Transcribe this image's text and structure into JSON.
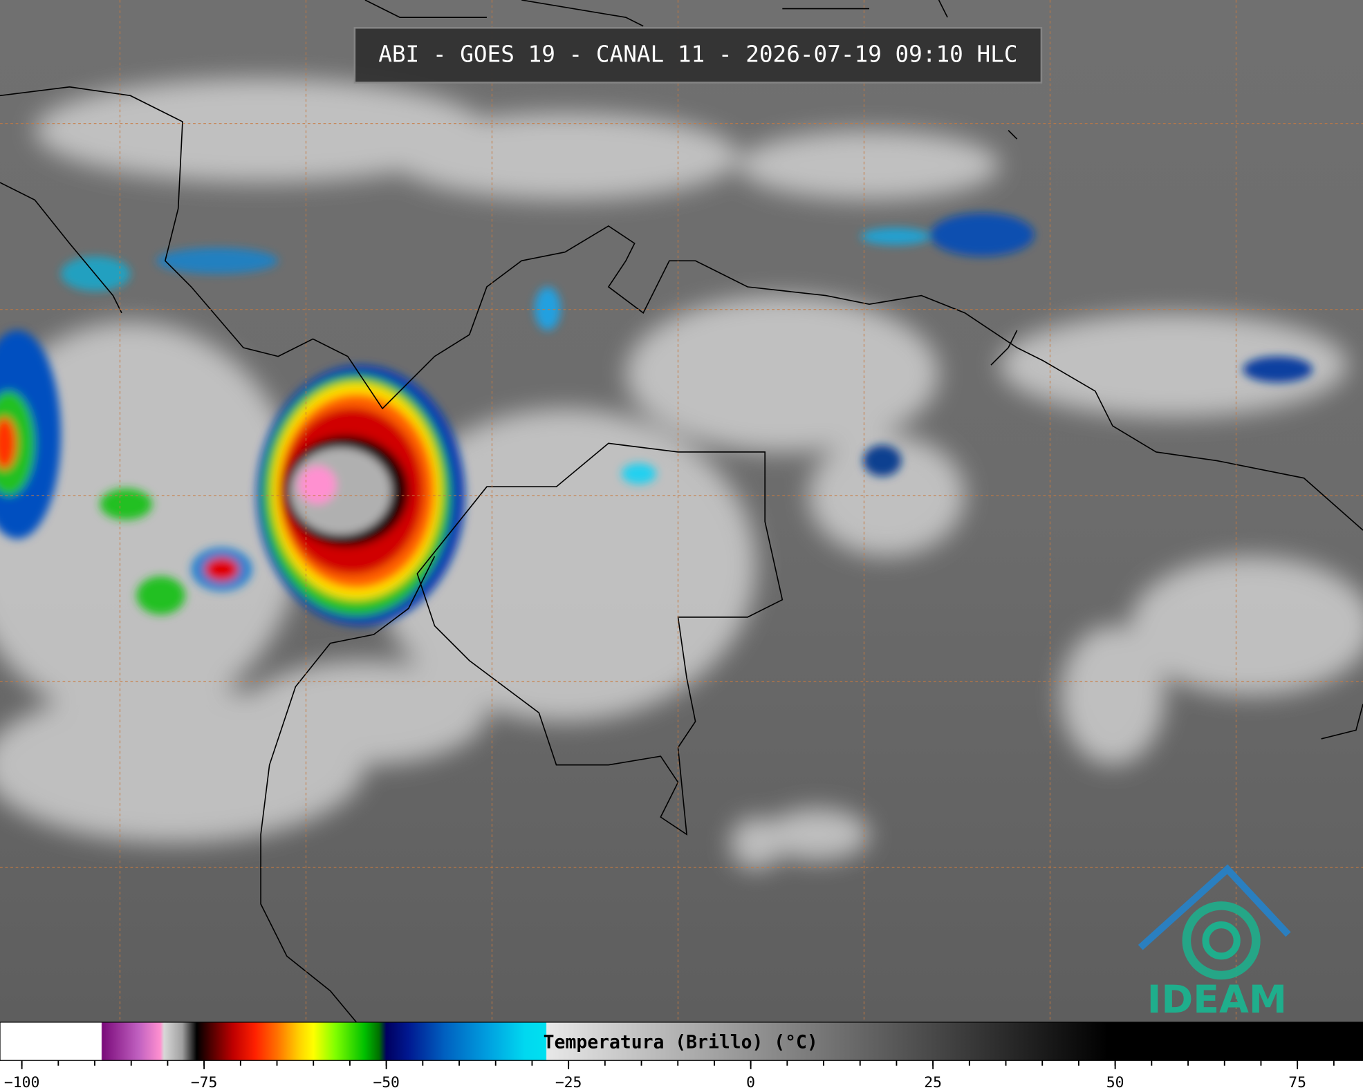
{
  "title": "ABI - GOES 19 - CANAL 11 - 2026-07-19 09:10 HLC",
  "logo": "IDEAM",
  "colorbar": {
    "label": "Temperatura (Brillo) (°C)",
    "xlim": [
      -103,
      84
    ],
    "xticks": [
      {
        "value": -100,
        "label": "−100"
      },
      {
        "value": -75,
        "label": "−75"
      },
      {
        "value": -50,
        "label": "−50"
      },
      {
        "value": -25,
        "label": "−25"
      },
      0,
      25,
      50,
      75
    ],
    "minor_xticks": [
      -100,
      -95,
      -90,
      -85,
      -80,
      -75,
      -70,
      -65,
      -60,
      -55,
      -50,
      -45,
      -40,
      -35,
      -30,
      -25,
      -20,
      -15,
      -10,
      -5,
      0,
      5,
      10,
      15,
      20,
      25,
      30,
      35,
      40,
      45,
      50,
      55,
      60,
      65,
      70,
      75,
      80
    ],
    "stops": [
      {
        "value": -103,
        "color": "#ffffff"
      },
      {
        "value": -89.1,
        "color": "#ffffff"
      },
      {
        "value": -89,
        "color": "#7a0a7a"
      },
      {
        "value": -84,
        "color": "#c060c0"
      },
      {
        "value": -81,
        "color": "#ff90d0"
      },
      {
        "value": -80.5,
        "color": "#d8d8d8"
      },
      {
        "value": -78,
        "color": "#a0a0a0"
      },
      {
        "value": -76,
        "color": "#000000"
      },
      {
        "value": -74,
        "color": "#500000"
      },
      {
        "value": -71,
        "color": "#c00000"
      },
      {
        "value": -68,
        "color": "#ff2000"
      },
      {
        "value": -65,
        "color": "#ff7000"
      },
      {
        "value": -62,
        "color": "#ffd000"
      },
      {
        "value": -60,
        "color": "#ffff00"
      },
      {
        "value": -57,
        "color": "#80ff00"
      },
      {
        "value": -53,
        "color": "#00c000"
      },
      {
        "value": -51,
        "color": "#007000"
      },
      {
        "value": -50,
        "color": "#000060"
      },
      {
        "value": -47,
        "color": "#001890"
      },
      {
        "value": -42,
        "color": "#0060c0"
      },
      {
        "value": -36,
        "color": "#00a0e0"
      },
      {
        "value": -31,
        "color": "#00d8f0"
      },
      {
        "value": -28.1,
        "color": "#00e0f0"
      },
      {
        "value": -28,
        "color": "#e8e8e8"
      },
      {
        "value": 49,
        "color": "#000000"
      },
      {
        "value": 84,
        "color": "#000000"
      }
    ]
  }
}
